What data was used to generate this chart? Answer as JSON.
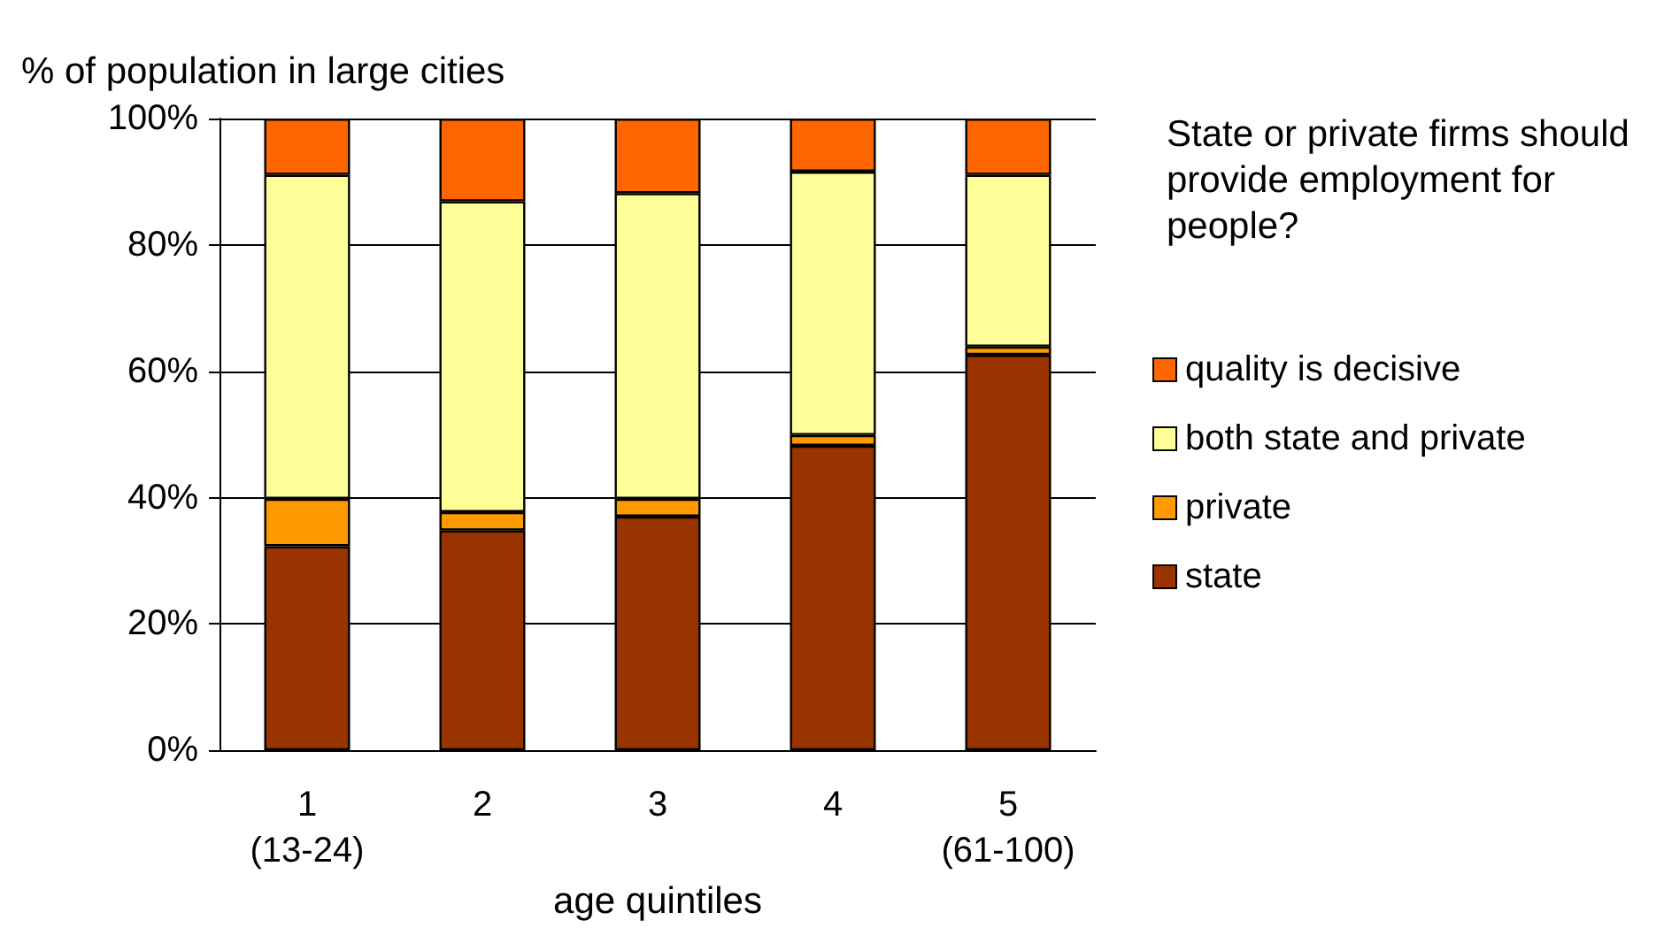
{
  "chart_data": {
    "type": "bar",
    "stacked": true,
    "ylabel": "% of population in large cities",
    "xlabel": "age quintiles",
    "legend_title": "State or private firms should provide employment for people?",
    "categories": [
      "1\n(13-24)",
      "2",
      "3",
      "4",
      "5\n(61-100)"
    ],
    "series": [
      {
        "name": "state",
        "color": "#993300",
        "values": [
          32.3,
          34.8,
          37.0,
          48.2,
          62.6
        ]
      },
      {
        "name": "private",
        "color": "#ff9900",
        "values": [
          7.5,
          2.9,
          2.8,
          1.7,
          1.3
        ]
      },
      {
        "name": "both state and private",
        "color": "#ffff99",
        "values": [
          51.3,
          49.2,
          48.4,
          41.7,
          27.2
        ]
      },
      {
        "name": "quality is decisive",
        "color": "#ff6600",
        "values": [
          8.9,
          13.1,
          11.8,
          8.4,
          8.9
        ]
      }
    ],
    "ylim": [
      0,
      100
    ],
    "yticks": [
      {
        "value": 0,
        "label": "0%"
      },
      {
        "value": 20,
        "label": "20%"
      },
      {
        "value": 40,
        "label": "40%"
      },
      {
        "value": 60,
        "label": "60%"
      },
      {
        "value": 80,
        "label": "80%"
      },
      {
        "value": 100,
        "label": "100%"
      }
    ],
    "grid": "y",
    "legend": "right"
  }
}
